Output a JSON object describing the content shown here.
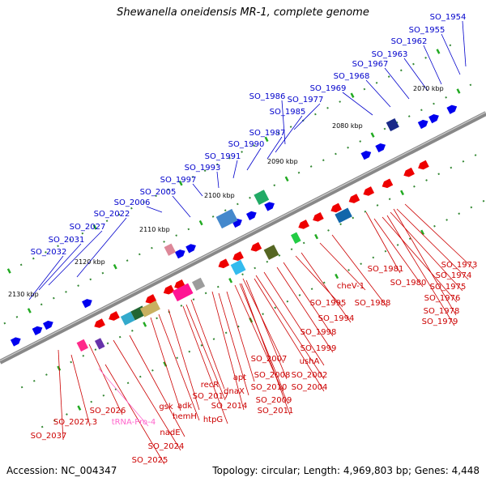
{
  "title": "Shewanella oneidensis MR-1, complete genome",
  "footer": {
    "accession": "Accession: NC_004347",
    "summary": "Topology: circular; Length: 4,969,803 bp; Genes: 4,448"
  },
  "colors": {
    "forward_label": "#0000cc",
    "reverse_label": "#cc0000",
    "rna_label": "#ff66cc",
    "backbone": "#888888",
    "forward_gene": "#0000ee",
    "reverse_gene": "#ee0000"
  },
  "kbp_ticks": [
    "2070 kbp",
    "2080 kbp",
    "2090 kbp",
    "2100 kbp",
    "2110 kbp",
    "2120 kbp",
    "2130 kbp"
  ],
  "forward_labels": [
    "SO_1954",
    "SO_1955",
    "SO_1962",
    "SO_1963",
    "SO_1967",
    "SO_1968",
    "SO_1969",
    "SO_1977",
    "SO_1986",
    "SO_1985",
    "SO_1987",
    "SO_1990",
    "SO_1991",
    "SO_1993",
    "SO_1997",
    "SO_2005",
    "SO_2006",
    "SO_2022",
    "SO_2027",
    "SO_2031",
    "SO_2032"
  ],
  "reverse_labels": [
    "SO_1973",
    "SO_1974",
    "SO_1981",
    "SO_1975",
    "SO_1980",
    "SO_1976",
    "SO_1978",
    "SO_1979",
    "cheV-1",
    "SO_1988",
    "SO_1995",
    "SO_1994",
    "SO_1998",
    "SO_1999",
    "ushA",
    "SO_2007",
    "SO_2002",
    "SO_2008",
    "SO_2004",
    "apt",
    "SO_2010",
    "dnaX",
    "SO_2009",
    "recR",
    "SO_2011",
    "SO_2017",
    "SO_2014",
    "gsk",
    "adk",
    "htpG",
    "hemH",
    "SO_2026",
    "nadE",
    "SO_2027.3",
    "SO_2024",
    "SO_2037",
    "SO_2025"
  ],
  "rna_labels": [
    "tRNA-Pro-4"
  ]
}
